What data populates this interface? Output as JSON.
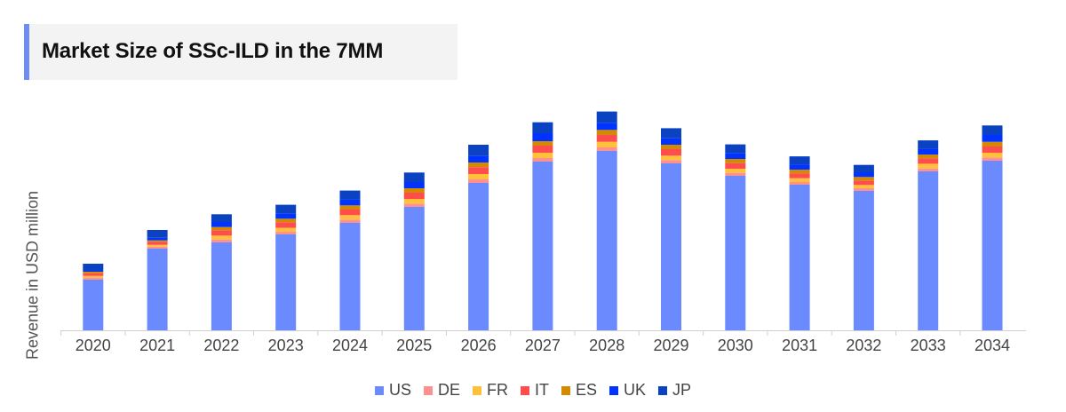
{
  "title": "Market Size of SSc-ILD in the 7MM",
  "chart_data": {
    "type": "bar",
    "stacked": true,
    "title": "Market Size of SSc-ILD in the 7MM",
    "xlabel": "",
    "ylabel": "Revenue in USD million",
    "y_tick_labels_shown": false,
    "grid": false,
    "legend_position": "bottom",
    "categories": [
      "2020",
      "2021",
      "2022",
      "2023",
      "2024",
      "2025",
      "2026",
      "2027",
      "2028",
      "2029",
      "2030",
      "2031",
      "2032",
      "2033",
      "2034"
    ],
    "series": [
      {
        "name": "US",
        "color": "#6b8afd",
        "values": [
          57,
          92,
          99,
          108,
          121,
          139,
          166,
          190,
          202,
          188,
          174,
          164,
          157,
          179,
          191
        ]
      },
      {
        "name": "DE",
        "color": "#ff9090",
        "values": [
          2.3,
          2.3,
          3.3,
          3,
          3.7,
          3.7,
          4,
          4,
          4,
          3.7,
          3.3,
          3,
          3,
          3.3,
          3.7
        ]
      },
      {
        "name": "FR",
        "color": "#ffc03a",
        "values": [
          2,
          2,
          4.4,
          4.4,
          5,
          5.3,
          6,
          6,
          6.3,
          5,
          4.7,
          4.3,
          3.7,
          5.3,
          5.3
        ]
      },
      {
        "name": "IT",
        "color": "#ff4d4d",
        "values": [
          3,
          3.3,
          6,
          6.3,
          6.3,
          7,
          7.7,
          8,
          7.7,
          7.3,
          6.3,
          5.3,
          5,
          6,
          7
        ]
      },
      {
        "name": "ES",
        "color": "#d48a00",
        "values": [
          1.7,
          1.7,
          3.6,
          4,
          4.7,
          5,
          5.3,
          5,
          5.7,
          5,
          4.7,
          4.3,
          4,
          4.3,
          5.3
        ]
      },
      {
        "name": "UK",
        "color": "#0033ff",
        "values": [
          1,
          3,
          5.7,
          6,
          6.7,
          7,
          7.7,
          9,
          8,
          7.3,
          6.7,
          6,
          5.3,
          6.7,
          7.7
        ]
      },
      {
        "name": "JP",
        "color": "#0b42c2",
        "values": [
          8,
          8.7,
          8.7,
          9.7,
          10,
          10.7,
          12.3,
          12.3,
          12.7,
          11.3,
          9.7,
          9,
          8.3,
          9.3,
          10.7
        ]
      }
    ]
  }
}
